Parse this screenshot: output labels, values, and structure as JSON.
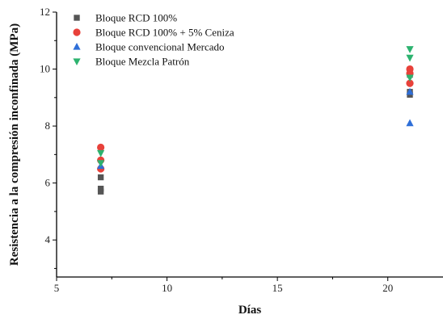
{
  "chart_data": {
    "type": "scatter",
    "xlabel": "Días",
    "ylabel": "Resistencia a la compresión inconfinada (MPa)",
    "xlim": [
      5,
      22.5
    ],
    "ylim": [
      2.7,
      12
    ],
    "xticks": [
      5,
      10,
      15,
      20
    ],
    "yticks": [
      4,
      6,
      8,
      10,
      12
    ],
    "grid": false,
    "legend_position": "top-left",
    "series": [
      {
        "name": "Bloque RCD 100%",
        "marker": "square",
        "color": "#555555",
        "points": [
          [
            7,
            6.2
          ],
          [
            7,
            5.8
          ],
          [
            7,
            5.7
          ],
          [
            21,
            9.1
          ],
          [
            21,
            9.2
          ],
          [
            21,
            9.8
          ]
        ]
      },
      {
        "name": "Bloque RCD 100% + 5% Ceniza",
        "marker": "circle",
        "color": "#e8413a",
        "points": [
          [
            7,
            7.25
          ],
          [
            7,
            6.8
          ],
          [
            7,
            6.5
          ],
          [
            21,
            10.0
          ],
          [
            21,
            9.5
          ],
          [
            21,
            9.85
          ]
        ]
      },
      {
        "name": "Bloque convencional Mercado",
        "marker": "triangle-up",
        "color": "#2f6fd8",
        "points": [
          [
            7,
            6.6
          ],
          [
            21,
            8.1
          ],
          [
            21,
            9.2
          ]
        ]
      },
      {
        "name": "Bloque Mezcla Patrón",
        "marker": "triangle-down",
        "color": "#2db36f",
        "points": [
          [
            7,
            7.05
          ],
          [
            7,
            6.7
          ],
          [
            21,
            10.7
          ],
          [
            21,
            10.4
          ],
          [
            21,
            9.7
          ]
        ]
      }
    ]
  }
}
